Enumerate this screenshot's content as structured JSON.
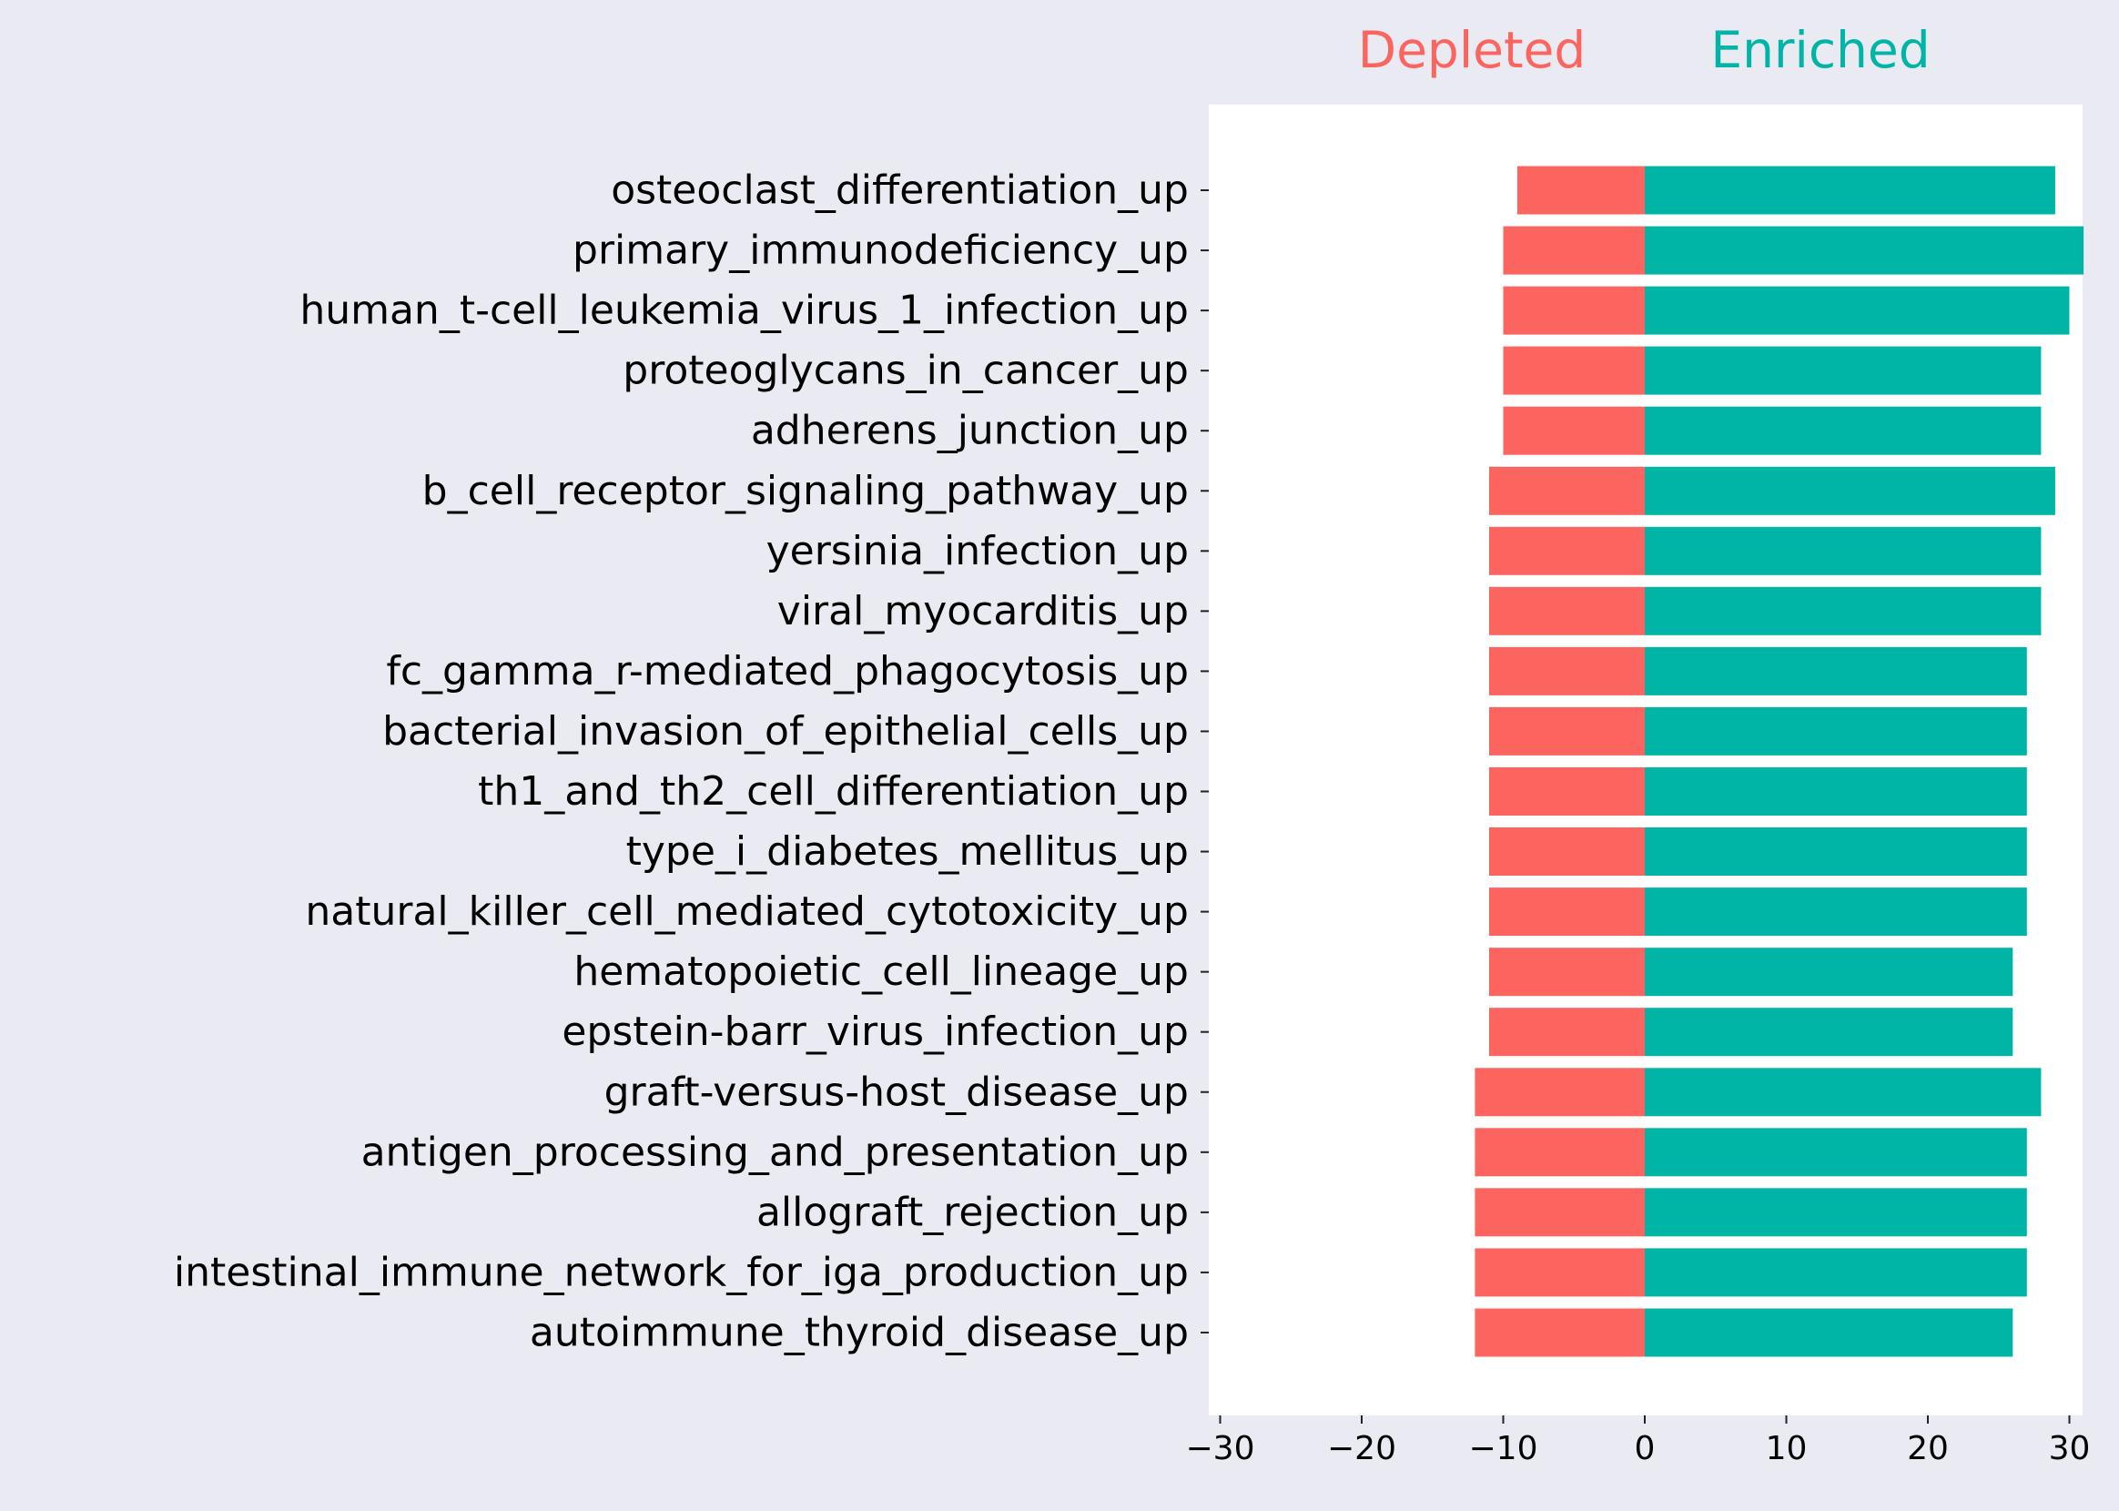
{
  "chart_data": {
    "type": "bar",
    "orientation": "horizontal",
    "legend": [
      {
        "name": "Depleted",
        "color": "#fc6460"
      },
      {
        "name": "Enriched",
        "color": "#00b5a6"
      }
    ],
    "categories": [
      "osteoclast_differentiation_up",
      "primary_immunodeficiency_up",
      "human_t-cell_leukemia_virus_1_infection_up",
      "proteoglycans_in_cancer_up",
      "adherens_junction_up",
      "b_cell_receptor_signaling_pathway_up",
      "yersinia_infection_up",
      "viral_myocarditis_up",
      "fc_gamma_r-mediated_phagocytosis_up",
      "bacterial_invasion_of_epithelial_cells_up",
      "th1_and_th2_cell_differentiation_up",
      "type_i_diabetes_mellitus_up",
      "natural_killer_cell_mediated_cytotoxicity_up",
      "hematopoietic_cell_lineage_up",
      "epstein-barr_virus_infection_up",
      "graft-versus-host_disease_up",
      "antigen_processing_and_presentation_up",
      "allograft_rejection_up",
      "intestinal_immune_network_for_iga_production_up",
      "autoimmune_thyroid_disease_up"
    ],
    "series": [
      {
        "name": "Depleted",
        "color": "#fc6460",
        "values": [
          -9,
          -10,
          -10,
          -10,
          -10,
          -11,
          -11,
          -11,
          -11,
          -11,
          -11,
          -11,
          -11,
          -11,
          -11,
          -12,
          -12,
          -12,
          -12,
          -12
        ]
      },
      {
        "name": "Enriched",
        "color": "#00b5a6",
        "values": [
          29,
          31,
          30,
          28,
          28,
          29,
          28,
          28,
          27,
          27,
          27,
          27,
          27,
          26,
          26,
          28,
          27,
          27,
          27,
          26
        ]
      }
    ],
    "xlim": [
      -31,
      31
    ],
    "xticks": [
      -30,
      -20,
      -10,
      0,
      10,
      20,
      30
    ],
    "xtick_labels": [
      "−30",
      "−20",
      "−10",
      "0",
      "10",
      "20",
      "30"
    ],
    "grid": false,
    "legend_placement": "top"
  }
}
